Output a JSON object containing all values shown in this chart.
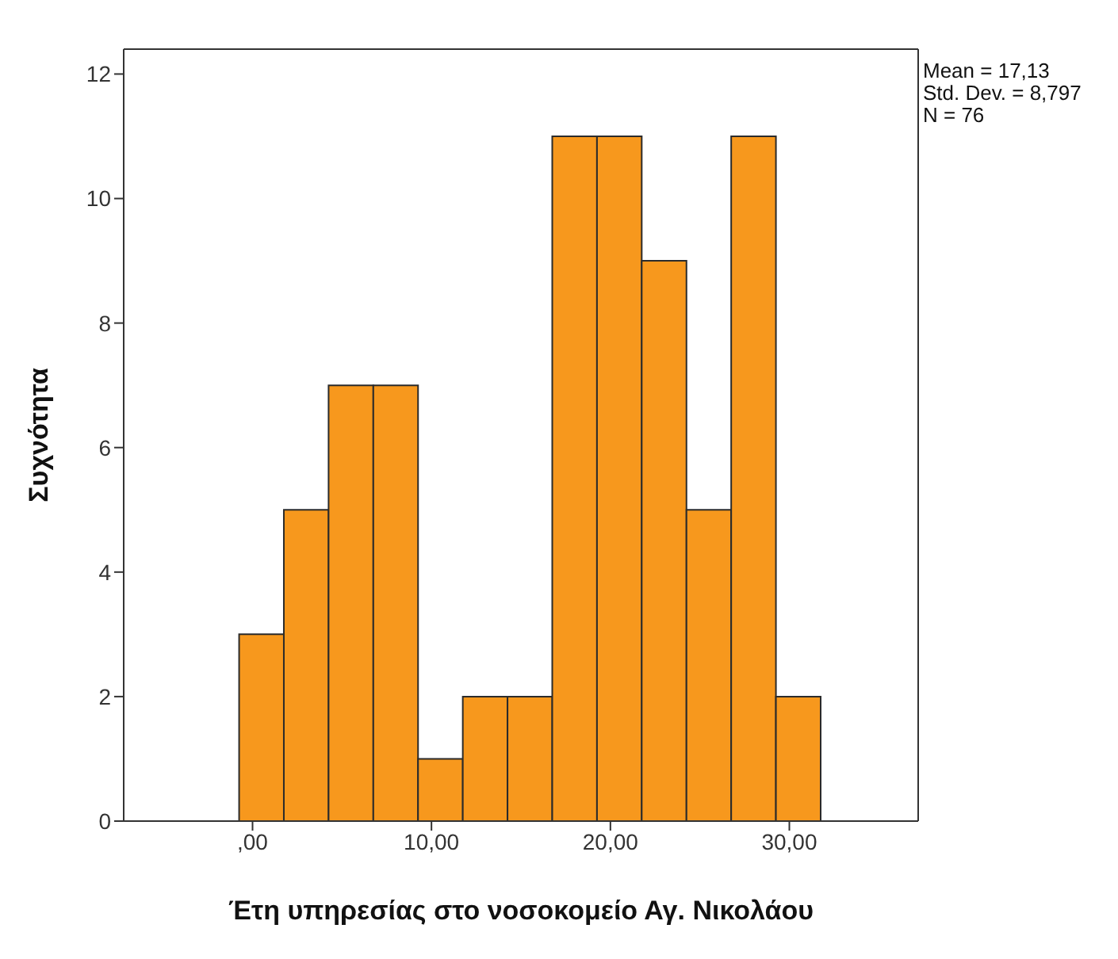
{
  "chart_data": {
    "type": "histogram",
    "xlabel": "Έτη υπηρεσίας στο νοσοκομείο Αγ. Νικολάου",
    "ylabel": "Συχνότητα",
    "bins": [
      -0.75,
      1.75,
      4.25,
      6.75,
      9.25,
      11.75,
      14.25,
      16.75,
      19.25,
      21.75,
      24.25,
      26.75,
      29.25,
      31.75
    ],
    "values": [
      3,
      5,
      7,
      7,
      1,
      2,
      2,
      11,
      11,
      9,
      5,
      11,
      2
    ],
    "color": "#f7981d",
    "xlim": [
      -7.2,
      37.2
    ],
    "xticks": [
      {
        "value": 0,
        "label": ",00"
      },
      {
        "value": 10,
        "label": "10,00"
      },
      {
        "value": 20,
        "label": "20,00"
      },
      {
        "value": 30,
        "label": "30,00"
      }
    ],
    "ylim": [
      0,
      12.4
    ],
    "yticks": [
      0,
      2,
      4,
      6,
      8,
      10,
      12
    ],
    "annotations": [
      "Mean = 17,13",
      "Std. Dev. = 8,797",
      "N = 76"
    ],
    "grid": false
  }
}
